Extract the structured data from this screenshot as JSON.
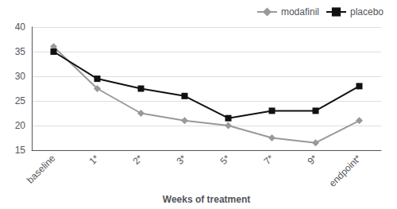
{
  "chart_data": {
    "type": "line",
    "categories": [
      "baseline",
      "1*",
      "2*",
      "3*",
      "5*",
      "7*",
      "9*",
      "endpoint*"
    ],
    "series": [
      {
        "name": "modafinil",
        "color": "#999999",
        "marker": "diamond",
        "values": [
          36.0,
          27.5,
          22.5,
          21.0,
          20.0,
          17.5,
          16.5,
          21.0
        ]
      },
      {
        "name": "placebo",
        "color": "#111111",
        "marker": "square",
        "values": [
          35.0,
          29.5,
          27.5,
          26.0,
          21.5,
          23.0,
          23.0,
          28.0
        ]
      }
    ],
    "xlabel": "Weeks of treatment",
    "ylim": [
      15,
      40
    ],
    "yticks": [
      15,
      20,
      25,
      30,
      35,
      40
    ],
    "grid": true,
    "legend": "upper right"
  }
}
